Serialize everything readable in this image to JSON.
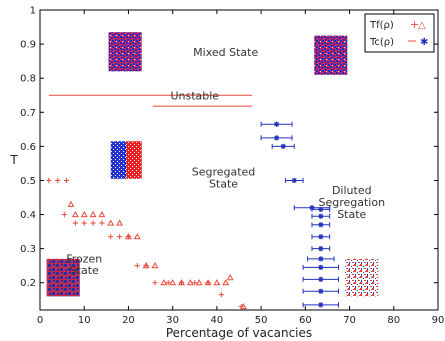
{
  "chart_data": {
    "type": "scatter",
    "title": "",
    "xlabel": "Percentage of vacancies",
    "ylabel": "T",
    "xlim": [
      0,
      90
    ],
    "ylim": [
      0.12,
      1.0
    ],
    "xticks": [
      0,
      10,
      20,
      30,
      40,
      50,
      60,
      70,
      80,
      90
    ],
    "yticks": [
      0.2,
      0.3,
      0.4,
      0.5,
      0.6,
      0.7,
      0.8,
      0.9,
      1
    ],
    "legend": {
      "position": "top-right",
      "entries": [
        "Tf(ρ)",
        "Tc(ρ)"
      ]
    },
    "grid": false,
    "series": [
      {
        "name": "Tf(ρ)",
        "marker": "plus-triangle",
        "color": "#e84a3a",
        "plus_points": [
          {
            "x": 2,
            "y": 0.5
          },
          {
            "x": 4,
            "y": 0.5
          },
          {
            "x": 6,
            "y": 0.5
          },
          {
            "x": 5.5,
            "y": 0.4
          },
          {
            "x": 8,
            "y": 0.375
          },
          {
            "x": 10,
            "y": 0.375
          },
          {
            "x": 12,
            "y": 0.375
          },
          {
            "x": 14,
            "y": 0.375
          },
          {
            "x": 16,
            "y": 0.335
          },
          {
            "x": 18,
            "y": 0.335
          },
          {
            "x": 20,
            "y": 0.335
          },
          {
            "x": 22,
            "y": 0.25
          },
          {
            "x": 24,
            "y": 0.25
          },
          {
            "x": 26,
            "y": 0.2
          },
          {
            "x": 29,
            "y": 0.2
          },
          {
            "x": 32,
            "y": 0.2
          },
          {
            "x": 35,
            "y": 0.2
          },
          {
            "x": 38,
            "y": 0.2
          },
          {
            "x": 41,
            "y": 0.165
          },
          {
            "x": 45.5,
            "y": 0.13
          }
        ],
        "triangle_points": [
          {
            "x": 7,
            "y": 0.43
          },
          {
            "x": 8,
            "y": 0.4
          },
          {
            "x": 10,
            "y": 0.4
          },
          {
            "x": 12,
            "y": 0.4
          },
          {
            "x": 14,
            "y": 0.4
          },
          {
            "x": 16,
            "y": 0.375
          },
          {
            "x": 18,
            "y": 0.375
          },
          {
            "x": 20,
            "y": 0.335
          },
          {
            "x": 22,
            "y": 0.335
          },
          {
            "x": 24,
            "y": 0.25
          },
          {
            "x": 26,
            "y": 0.25
          },
          {
            "x": 28,
            "y": 0.2
          },
          {
            "x": 30,
            "y": 0.2
          },
          {
            "x": 32,
            "y": 0.2
          },
          {
            "x": 34,
            "y": 0.2
          },
          {
            "x": 36,
            "y": 0.2
          },
          {
            "x": 38,
            "y": 0.2
          },
          {
            "x": 40,
            "y": 0.2
          },
          {
            "x": 42,
            "y": 0.2
          },
          {
            "x": 43,
            "y": 0.215
          },
          {
            "x": 46,
            "y": 0.13
          }
        ]
      },
      {
        "name": "Tc(ρ)",
        "marker": "asterisk",
        "color": "#2233bb",
        "points": [
          {
            "x": 53.5,
            "y": 0.665,
            "xerr": 3.5
          },
          {
            "x": 53.5,
            "y": 0.625,
            "xerr": 3.5
          },
          {
            "x": 55,
            "y": 0.6,
            "xerr": 2.5
          },
          {
            "x": 57.5,
            "y": 0.5,
            "xerr": 2
          },
          {
            "x": 61.5,
            "y": 0.42,
            "xerr": 4
          },
          {
            "x": 63.5,
            "y": 0.415,
            "xerr": 2
          },
          {
            "x": 63.5,
            "y": 0.395,
            "xerr": 2
          },
          {
            "x": 63.5,
            "y": 0.37,
            "xerr": 2
          },
          {
            "x": 63.5,
            "y": 0.335,
            "xerr": 2
          },
          {
            "x": 63.5,
            "y": 0.3,
            "xerr": 2
          },
          {
            "x": 63.5,
            "y": 0.27,
            "xerr": 3
          },
          {
            "x": 63.5,
            "y": 0.245,
            "xerr": 4
          },
          {
            "x": 63.5,
            "y": 0.21,
            "xerr": 4
          },
          {
            "x": 63.5,
            "y": 0.175,
            "xerr": 4
          },
          {
            "x": 63.5,
            "y": 0.135,
            "xerr": 4
          }
        ]
      }
    ],
    "lines": [
      {
        "name": "Unstable",
        "x": [
          2,
          48
        ],
        "y": 0.75,
        "color": "#e84a3a"
      },
      {
        "name": "Unstable",
        "x": [
          25.5,
          48
        ],
        "y": 0.718,
        "color": "#e84a3a"
      }
    ],
    "annotations": [
      {
        "text": "Mixed State",
        "x": 42,
        "y": 0.865
      },
      {
        "text": "Unstable",
        "x": 35,
        "y": 0.738
      },
      {
        "text": "Segregated",
        "x": 41.5,
        "y": 0.515
      },
      {
        "text": "State",
        "x": 41.5,
        "y": 0.48
      },
      {
        "text": "Diluted",
        "x": 70.5,
        "y": 0.46
      },
      {
        "text": "Segregation",
        "x": 70.5,
        "y": 0.425
      },
      {
        "text": "State",
        "x": 70.5,
        "y": 0.39
      },
      {
        "text": "Frozen",
        "x": 10,
        "y": 0.26
      },
      {
        "text": "State",
        "x": 10,
        "y": 0.225
      }
    ],
    "insets": [
      {
        "name": "mixed-inset-left",
        "x": [
          15.5,
          23
        ],
        "y": [
          0.82,
          0.935
        ],
        "style": "mixed"
      },
      {
        "name": "mixed-inset-right",
        "x": [
          62,
          69.5
        ],
        "y": [
          0.81,
          0.925
        ],
        "style": "mixed"
      },
      {
        "name": "segregated-inset",
        "x": [
          16,
          23
        ],
        "y": [
          0.505,
          0.615
        ],
        "style": "segregated"
      },
      {
        "name": "frozen-inset",
        "x": [
          1.5,
          9
        ],
        "y": [
          0.16,
          0.27
        ],
        "style": "frozen"
      },
      {
        "name": "diluted-inset",
        "x": [
          69,
          76.5
        ],
        "y": [
          0.16,
          0.27
        ],
        "style": "diluted"
      }
    ]
  }
}
